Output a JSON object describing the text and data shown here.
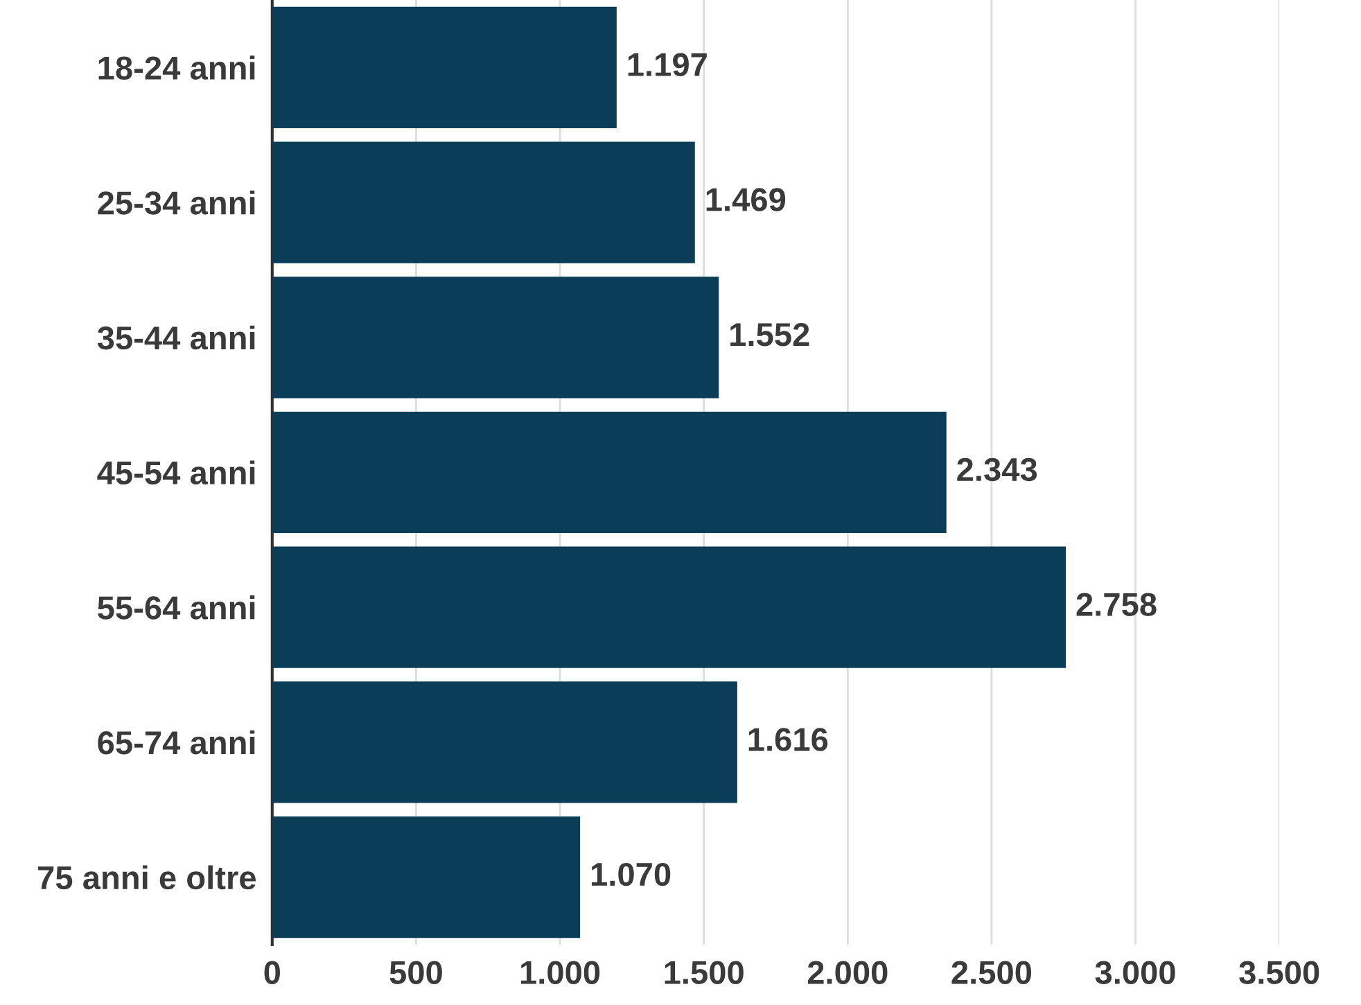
{
  "chart_data": {
    "type": "bar",
    "orientation": "horizontal",
    "categories": [
      "18-24 anni",
      "25-34 anni",
      "35-44 anni",
      "45-54 anni",
      "55-64 anni",
      "65-74 anni",
      "75 anni e oltre"
    ],
    "values": [
      1197,
      1469,
      1552,
      2343,
      2758,
      1616,
      1070
    ],
    "value_labels": [
      "1.197",
      "1.469",
      "1.552",
      "2.343",
      "2.758",
      "1.616",
      "1.070"
    ],
    "color": "#0b3d58",
    "xlim": [
      0,
      3500
    ],
    "xticks": [
      0,
      {
        "value": 500,
        "label": "500"
      },
      {
        "value": 1000,
        "label": "1.000"
      },
      {
        "value": 1500,
        "label": "1.500"
      },
      {
        "value": 2000,
        "label": "2.000"
      },
      {
        "value": 2500,
        "label": "2.500"
      },
      {
        "value": 3000,
        "label": "3.000"
      },
      {
        "value": 3500,
        "label": "3.500"
      }
    ],
    "grid": "x"
  }
}
